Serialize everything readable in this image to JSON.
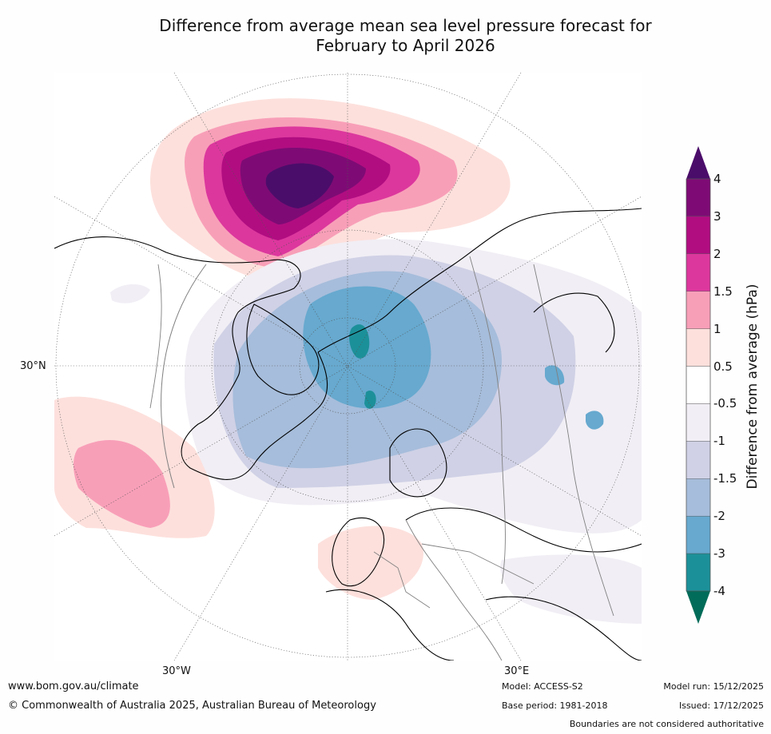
{
  "title": {
    "line1": "Difference from average mean sea level pressure forecast for",
    "line2": "February to April 2026"
  },
  "map": {
    "lat_label": "30°N",
    "lon_label_west": "30°W",
    "lon_label_east": "30°E"
  },
  "colorbar": {
    "label": "Difference from average (hPa)",
    "ticks": [
      "4",
      "3",
      "2",
      "1.5",
      "1",
      "0.5",
      "-0.5",
      "-1",
      "-1.5",
      "-2",
      "-3",
      "-4"
    ],
    "colors": [
      "#4b0d6a",
      "#7e0b75",
      "#b10d81",
      "#dc379d",
      "#f89fb8",
      "#fde0dc",
      "#ffffff",
      "#f1eef5",
      "#d0d1e6",
      "#a6bddb",
      "#67a9cf",
      "#1c9099",
      "#016c59"
    ]
  },
  "footer": {
    "website": "www.bom.gov.au/climate",
    "copyright": "© Commonwealth of Australia 2025, Australian Bureau of Meteorology",
    "model": "Model: ACCESS-S2",
    "base_period": "Base period: 1981-2018",
    "model_run": "Model run: 15/12/2025",
    "issued": "Issued: 17/12/2025",
    "disclaimer": "Boundaries are not considered authoritative"
  }
}
